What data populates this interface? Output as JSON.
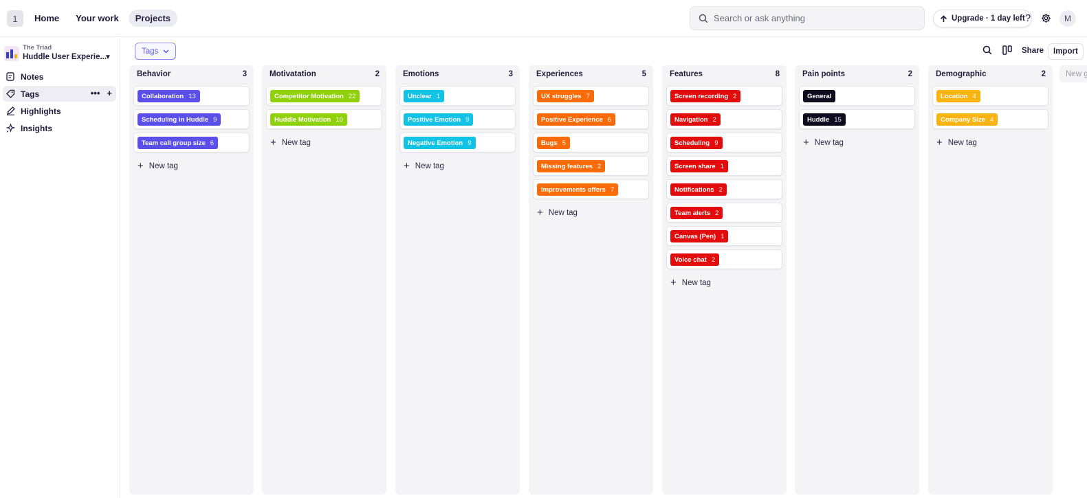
{
  "topbar": {
    "workspace_badge": "1",
    "nav": [
      {
        "label": "Home",
        "active": false
      },
      {
        "label": "Your work",
        "active": false
      },
      {
        "label": "Projects",
        "active": true
      }
    ],
    "search_placeholder": "Search or ask anything",
    "upgrade_label": "Upgrade · 1 day left",
    "avatar_initial": "M"
  },
  "sidebar": {
    "org": "The Triad",
    "project": "Huddle User Experie...",
    "items": [
      {
        "label": "Notes",
        "icon": "notes-icon",
        "active": false
      },
      {
        "label": "Tags",
        "icon": "tag-icon",
        "active": true
      },
      {
        "label": "Highlights",
        "icon": "highlight-pen-icon",
        "active": false
      },
      {
        "label": "Insights",
        "icon": "sparkle-icon",
        "active": false
      }
    ]
  },
  "toolbar": {
    "view_label": "Tags",
    "share_label": "Share",
    "import_label": "Import"
  },
  "board": {
    "new_tag_label": "New tag",
    "new_group_label": "New g",
    "columns": [
      {
        "title": "Behavior",
        "count": "3",
        "color": "#5a4fe8",
        "tags": [
          {
            "name": "Collaboration",
            "count": "13"
          },
          {
            "name": "Scheduling in Huddle",
            "count": "9"
          },
          {
            "name": "Team call group size",
            "count": "6"
          }
        ]
      },
      {
        "title": "Motivatation",
        "count": "2",
        "color": "#8fd20b",
        "tags": [
          {
            "name": "Competitor Motivation",
            "count": "22"
          },
          {
            "name": "Huddle Motivation",
            "count": "10"
          }
        ]
      },
      {
        "title": "Emotions",
        "count": "3",
        "color": "#12c3e6",
        "tags": [
          {
            "name": "Unclear",
            "count": "1"
          },
          {
            "name": "Positive Emotion",
            "count": "9"
          },
          {
            "name": "Negative Emotion",
            "count": "9"
          }
        ]
      },
      {
        "title": "Experiences",
        "count": "5",
        "color": "#f96b09",
        "tags": [
          {
            "name": "UX struggles",
            "count": "7"
          },
          {
            "name": "Positive Experience",
            "count": "6"
          },
          {
            "name": "Bugs",
            "count": "5"
          },
          {
            "name": "Missing features",
            "count": "2"
          },
          {
            "name": "Improvements offers",
            "count": "7"
          }
        ]
      },
      {
        "title": "Features",
        "count": "8",
        "color": "#e30c0c",
        "tags": [
          {
            "name": "Screen recording",
            "count": "2"
          },
          {
            "name": "Navigation",
            "count": "2"
          },
          {
            "name": "Scheduling",
            "count": "9"
          },
          {
            "name": "Screen share",
            "count": "1"
          },
          {
            "name": "Notifications",
            "count": "2"
          },
          {
            "name": "Team alerts",
            "count": "2"
          },
          {
            "name": "Canvas (Pen)",
            "count": "1"
          },
          {
            "name": "Voice chat",
            "count": "2"
          }
        ]
      },
      {
        "title": "Pain points",
        "count": "2",
        "color": "#0f0c1f",
        "tags": [
          {
            "name": "General",
            "count": ""
          },
          {
            "name": "Huddle",
            "count": "15"
          }
        ]
      },
      {
        "title": "Demographic",
        "count": "2",
        "color": "#f8b511",
        "tags": [
          {
            "name": "Location",
            "count": "4"
          },
          {
            "name": "Company Size",
            "count": "4"
          }
        ]
      }
    ]
  }
}
